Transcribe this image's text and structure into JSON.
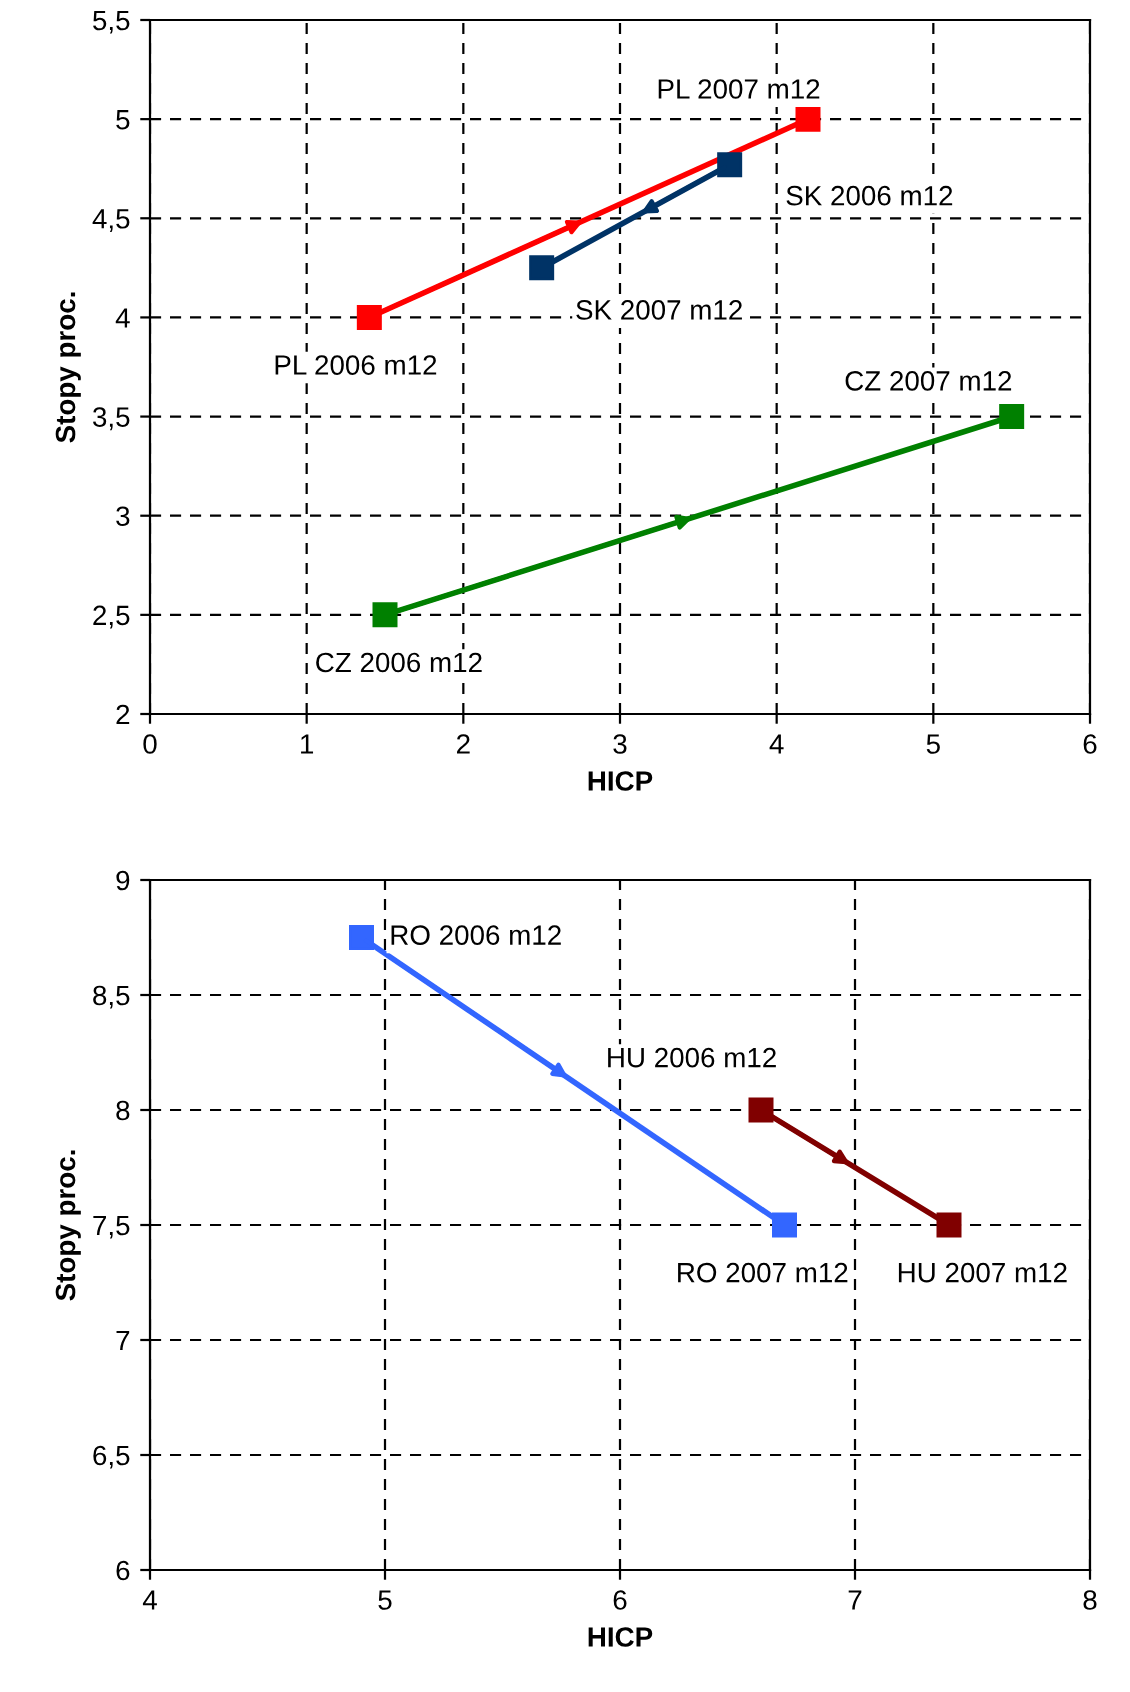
{
  "chart_data": [
    {
      "type": "line",
      "xlabel": "HICP",
      "ylabel": "Stopy proc.",
      "marker": "square",
      "grid": true,
      "xlim": [
        0,
        6
      ],
      "xticks": [
        0,
        1,
        2,
        3,
        4,
        5,
        6
      ],
      "ylim": [
        2,
        5.5
      ],
      "yticks": [
        2,
        {
          "value": 2.5,
          "label": "2,5"
        },
        3,
        {
          "value": 3.5,
          "label": "3,5"
        },
        4,
        {
          "value": 4.5,
          "label": "4,5"
        },
        5,
        {
          "value": 5.5,
          "label": "5,5"
        }
      ],
      "series": [
        {
          "color": "#ff0000",
          "x": [
            1.4,
            4.2
          ],
          "values": [
            4.0,
            5.0
          ]
        },
        {
          "color": "#003366",
          "x": [
            3.7,
            2.5
          ],
          "values": [
            4.77,
            4.25
          ]
        },
        {
          "color": "#008000",
          "x": [
            1.5,
            5.5
          ],
          "values": [
            2.5,
            3.5
          ]
        }
      ],
      "annotations": [
        {
          "text": "PL 2007 m12",
          "x": 4.2,
          "y": 5.0
        },
        {
          "text": "SK 2006 m12",
          "x": 3.7,
          "y": 4.77
        },
        {
          "text": "SK 2007 m12",
          "x": 2.5,
          "y": 4.25
        },
        {
          "text": "PL 2006 m12",
          "x": 1.4,
          "y": 4.0
        },
        {
          "text": "CZ 2007 m12",
          "x": 5.5,
          "y": 3.5
        },
        {
          "text": "CZ 2006 m12",
          "x": 1.5,
          "y": 2.5
        }
      ]
    },
    {
      "type": "line",
      "xlabel": "HICP",
      "ylabel": "Stopy proc.",
      "marker": "square",
      "grid": true,
      "xlim": [
        4,
        8
      ],
      "xticks": [
        4,
        5,
        6,
        7,
        8
      ],
      "ylim": [
        6,
        9
      ],
      "yticks": [
        6,
        {
          "value": 6.5,
          "label": "6,5"
        },
        7,
        {
          "value": 7.5,
          "label": "7,5"
        },
        8,
        {
          "value": 8.5,
          "label": "8,5"
        },
        9
      ],
      "series": [
        {
          "color": "#3366ff",
          "x": [
            4.9,
            6.7
          ],
          "values": [
            8.75,
            7.5
          ]
        },
        {
          "color": "#800000",
          "x": [
            6.6,
            7.4
          ],
          "values": [
            8.0,
            7.5
          ]
        }
      ],
      "annotations": [
        {
          "text": "RO 2006 m12",
          "x": 4.9,
          "y": 8.75
        },
        {
          "text": "HU 2006 m12",
          "x": 6.6,
          "y": 8.0
        },
        {
          "text": "RO 2007 m12",
          "x": 6.7,
          "y": 7.5
        },
        {
          "text": "HU 2007 m12",
          "x": 7.4,
          "y": 7.5
        }
      ]
    }
  ]
}
